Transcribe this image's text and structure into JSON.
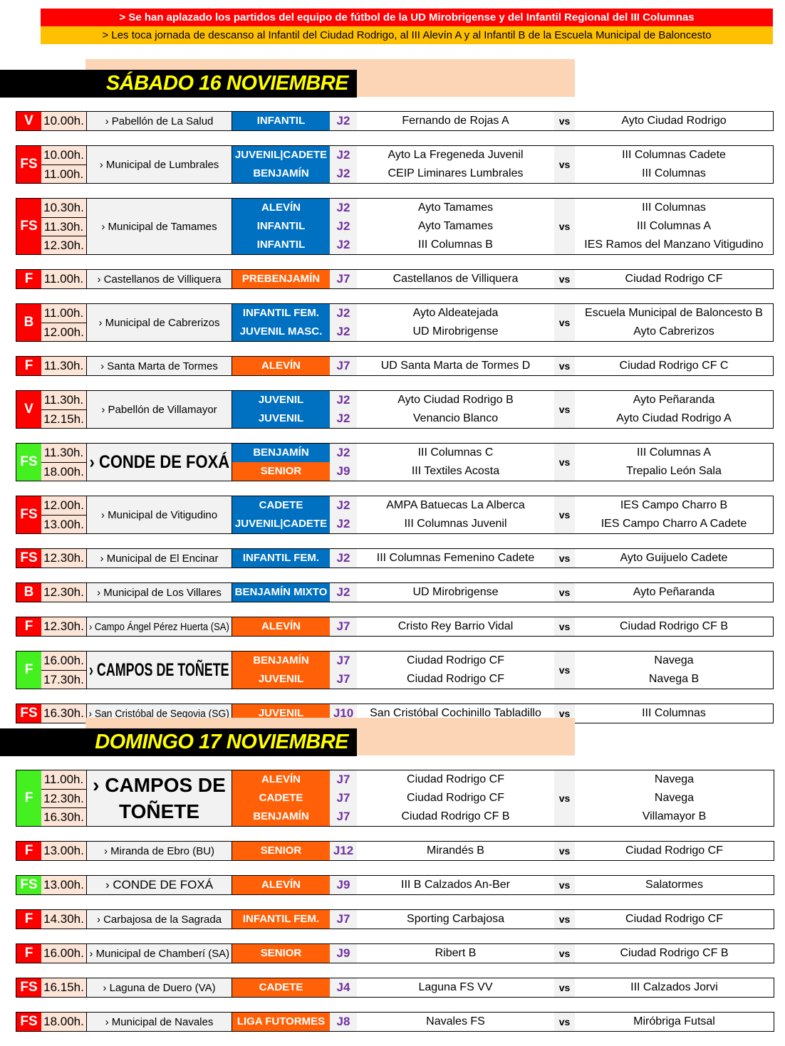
{
  "notices": [
    "> Se han aplazado los partidos del equipo de fútbol de la UD Mirobrigense y del Infantil Regional del III Columnas",
    "> Les toca jornada de descanso al Infantil del Ciudad Rodrigo, al III Alevín A y al Infantil B de la Escuela Municipal de Baloncesto"
  ],
  "colors": {
    "red": "#ff0000",
    "green": "#44f020",
    "blue": "#0070c0",
    "orange": "#ff6008",
    "jornada": "#7030a0",
    "time_bg": "#fce4d6",
    "day_text": "#ffff00"
  },
  "vs_label": "vs",
  "days": [
    {
      "title": "SÁBADO 16 NOVIEMBRE",
      "blocks": [
        {
          "sport": "V",
          "sport_color": "red",
          "times": [
            "10.00h."
          ],
          "venue": "› Pabellón de La Salud",
          "cats": [
            {
              "label": "INFANTIL",
              "color": "blue"
            }
          ],
          "j": [
            "J2"
          ],
          "home": [
            "Fernando de Rojas A"
          ],
          "away": [
            "Ayto Ciudad Rodrigo"
          ]
        },
        {
          "sport": "FS",
          "sport_color": "red",
          "times": [
            "10.00h.",
            "11.00h."
          ],
          "venue": "› Municipal de Lumbrales",
          "cats": [
            {
              "label": "JUVENIL|CADETE",
              "color": "blue"
            },
            {
              "label": "BENJAMÍN",
              "color": "blue"
            }
          ],
          "j": [
            "J2",
            "J2"
          ],
          "home": [
            "Ayto La Fregeneda Juvenil",
            "CEIP Liminares Lumbrales"
          ],
          "away": [
            "III Columnas Cadete",
            "III Columnas"
          ]
        },
        {
          "sport": "FS",
          "sport_color": "red",
          "times": [
            "10.30h.",
            "11.30h.",
            "12.30h."
          ],
          "venue": "› Municipal de Tamames",
          "cats": [
            {
              "label": "ALEVÍN",
              "color": "blue"
            },
            {
              "label": "INFANTIL",
              "color": "blue"
            },
            {
              "label": "INFANTIL",
              "color": "blue"
            }
          ],
          "j": [
            "J2",
            "J2",
            "J2"
          ],
          "home": [
            "Ayto Tamames",
            "Ayto Tamames",
            "III Columnas B"
          ],
          "away": [
            "III Columnas",
            "III Columnas A",
            "IES Ramos del Manzano Vitigudino"
          ]
        },
        {
          "sport": "F",
          "sport_color": "red",
          "times": [
            "11.00h."
          ],
          "venue": "› Castellanos de Villiquera",
          "cats": [
            {
              "label": "PREBENJAMÍN",
              "color": "orange"
            }
          ],
          "j": [
            "J7"
          ],
          "home": [
            "Castellanos de Villiquera"
          ],
          "away": [
            "Ciudad Rodrigo CF"
          ]
        },
        {
          "sport": "B",
          "sport_color": "red",
          "times": [
            "11.00h.",
            "12.00h."
          ],
          "venue": "› Municipal de Cabrerizos",
          "cats": [
            {
              "label": "INFANTIL FEM.",
              "color": "blue"
            },
            {
              "label": "JUVENIL MASC.",
              "color": "blue"
            }
          ],
          "j": [
            "J2",
            "J2"
          ],
          "home": [
            "Ayto Aldeatejada",
            "UD Mirobrigense"
          ],
          "away": [
            "Escuela Municipal de Baloncesto B",
            "Ayto Cabrerizos"
          ]
        },
        {
          "sport": "F",
          "sport_color": "red",
          "times": [
            "11.30h."
          ],
          "venue": "› Santa Marta de Tormes",
          "cats": [
            {
              "label": "ALEVÍN",
              "color": "orange"
            }
          ],
          "j": [
            "J7"
          ],
          "home": [
            "UD Santa Marta de Tormes D"
          ],
          "away": [
            "Ciudad Rodrigo CF C"
          ]
        },
        {
          "sport": "V",
          "sport_color": "red",
          "times": [
            "11.30h.",
            "12.15h."
          ],
          "venue": "› Pabellón de Villamayor",
          "cats": [
            {
              "label": "JUVENIL",
              "color": "blue"
            },
            {
              "label": "JUVENIL",
              "color": "blue"
            }
          ],
          "j": [
            "J2",
            "J2"
          ],
          "home": [
            "Ayto Ciudad Rodrigo B",
            "Venancio Blanco"
          ],
          "away": [
            "Ayto Peñaranda",
            "Ayto Ciudad Rodrigo A"
          ]
        },
        {
          "sport": "FS",
          "sport_color": "green",
          "times": [
            "11.30h.",
            "18.00h."
          ],
          "venue": "› CONDE DE FOXÁ",
          "venue_style": "big",
          "cats": [
            {
              "label": "BENJAMÍN",
              "color": "blue"
            },
            {
              "label": "SENIOR",
              "color": "orange"
            }
          ],
          "j": [
            "J2",
            "J9"
          ],
          "home": [
            "III Columnas C",
            "III Textiles Acosta"
          ],
          "away": [
            "III Columnas A",
            "Trepalio León Sala"
          ]
        },
        {
          "sport": "FS",
          "sport_color": "red",
          "times": [
            "12.00h.",
            "13.00h."
          ],
          "venue": "› Municipal de Vitigudino",
          "cats": [
            {
              "label": "CADETE",
              "color": "blue"
            },
            {
              "label": "JUVENIL|CADETE",
              "color": "blue"
            }
          ],
          "j": [
            "J2",
            "J2"
          ],
          "home": [
            "AMPA Batuecas La Alberca",
            "III Columnas Juvenil"
          ],
          "away": [
            "IES Campo Charro B",
            "IES Campo Charro A Cadete"
          ]
        },
        {
          "sport": "FS",
          "sport_color": "red",
          "times": [
            "12.30h."
          ],
          "venue": "› Municipal de El Encinar",
          "cats": [
            {
              "label": "INFANTIL FEM.",
              "color": "blue"
            }
          ],
          "j": [
            "J2"
          ],
          "home": [
            "III Columnas Femenino Cadete"
          ],
          "away": [
            "Ayto Guijuelo Cadete"
          ]
        },
        {
          "sport": "B",
          "sport_color": "red",
          "times": [
            "12.30h."
          ],
          "venue": "› Municipal de Los Villares",
          "cats": [
            {
              "label": "BENJAMÍN MIXTO",
              "color": "blue"
            }
          ],
          "j": [
            "J2"
          ],
          "home": [
            "UD Mirobrigense"
          ],
          "away": [
            "Ayto Peñaranda"
          ]
        },
        {
          "sport": "F",
          "sport_color": "red",
          "times": [
            "12.30h."
          ],
          "venue": "› Campo Ángel Pérez Huerta (SA)",
          "cats": [
            {
              "label": "ALEVÍN",
              "color": "orange"
            }
          ],
          "j": [
            "J7"
          ],
          "home": [
            "Cristo Rey Barrio Vidal"
          ],
          "away": [
            "Ciudad Rodrigo CF B"
          ]
        },
        {
          "sport": "F",
          "sport_color": "green",
          "times": [
            "16.00h.",
            "17.30h."
          ],
          "venue": "› CAMPOS DE TOÑETE",
          "venue_style": "big",
          "cats": [
            {
              "label": "BENJAMÍN",
              "color": "orange"
            },
            {
              "label": "JUVENIL",
              "color": "orange"
            }
          ],
          "j": [
            "J7",
            "J7"
          ],
          "home": [
            "Ciudad Rodrigo CF",
            "Ciudad Rodrigo CF"
          ],
          "away": [
            "Navega",
            "Navega B"
          ]
        },
        {
          "sport": "FS",
          "sport_color": "red",
          "times": [
            "16.30h."
          ],
          "venue": "› San Cristóbal de Segovia (SG)",
          "cats": [
            {
              "label": "JUVENIL",
              "color": "orange"
            }
          ],
          "j": [
            "J10"
          ],
          "home": [
            "San Cristóbal Cochinillo Tabladillo"
          ],
          "away": [
            "III Columnas"
          ]
        }
      ]
    },
    {
      "title": "DOMINGO 17 NOVIEMBRE",
      "blocks": [
        {
          "sport": "F",
          "sport_color": "green",
          "times": [
            "11.00h.",
            "12.30h.",
            "16.30h."
          ],
          "venue": "› CAMPOS DE TOÑETE",
          "venue_style": "huge",
          "cats": [
            {
              "label": "ALEVÍN",
              "color": "orange"
            },
            {
              "label": "CADETE",
              "color": "orange"
            },
            {
              "label": "BENJAMÍN",
              "color": "orange"
            }
          ],
          "j": [
            "J7",
            "J7",
            "J7"
          ],
          "home": [
            "Ciudad Rodrigo CF",
            "Ciudad Rodrigo CF",
            "Ciudad Rodrigo CF B"
          ],
          "away": [
            "Navega",
            "Navega",
            "Villamayor B"
          ]
        },
        {
          "sport": "F",
          "sport_color": "red",
          "times": [
            "13.00h."
          ],
          "venue": "› Miranda de Ebro (BU)",
          "cats": [
            {
              "label": "SENIOR",
              "color": "orange"
            }
          ],
          "j": [
            "J12"
          ],
          "home": [
            "Mirandés B"
          ],
          "away": [
            "Ciudad Rodrigo CF"
          ]
        },
        {
          "sport": "FS",
          "sport_color": "green",
          "times": [
            "13.00h."
          ],
          "venue": "› CONDE DE FOXÁ",
          "venue_style": "mid",
          "cats": [
            {
              "label": "ALEVÍN",
              "color": "orange"
            }
          ],
          "j": [
            "J9"
          ],
          "home": [
            "III B Calzados An-Ber"
          ],
          "away": [
            "Salatormes"
          ]
        },
        {
          "sport": "F",
          "sport_color": "red",
          "times": [
            "14.30h."
          ],
          "venue": "› Carbajosa de la Sagrada",
          "cats": [
            {
              "label": "INFANTIL FEM.",
              "color": "orange"
            }
          ],
          "j": [
            "J7"
          ],
          "home": [
            "Sporting Carbajosa"
          ],
          "away": [
            "Ciudad Rodrigo CF"
          ]
        },
        {
          "sport": "F",
          "sport_color": "red",
          "times": [
            "16.00h."
          ],
          "venue": "› Municipal de Chamberí (SA)",
          "cats": [
            {
              "label": "SENIOR",
              "color": "orange"
            }
          ],
          "j": [
            "J9"
          ],
          "home": [
            "Ribert B"
          ],
          "away": [
            "Ciudad Rodrigo CF B"
          ]
        },
        {
          "sport": "FS",
          "sport_color": "red",
          "times": [
            "16.15h."
          ],
          "venue": "› Laguna de Duero (VA)",
          "cats": [
            {
              "label": "CADETE",
              "color": "orange"
            }
          ],
          "j": [
            "J4"
          ],
          "home": [
            "Laguna FS VV"
          ],
          "away": [
            "III Calzados Jorvi"
          ]
        },
        {
          "sport": "FS",
          "sport_color": "red",
          "times": [
            "18.00h."
          ],
          "venue": "› Municipal de Navales",
          "cats": [
            {
              "label": "LIGA FUTORMES",
              "color": "orange"
            }
          ],
          "j": [
            "J8"
          ],
          "home": [
            "Navales FS"
          ],
          "away": [
            "Miróbriga Futsal"
          ]
        }
      ]
    }
  ]
}
